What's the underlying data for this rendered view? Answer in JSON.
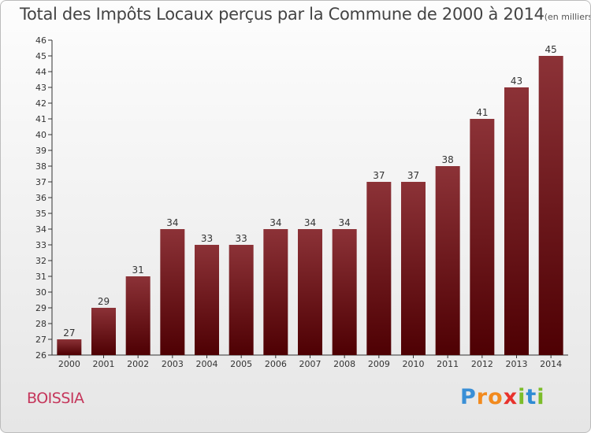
{
  "title": "Total des Impôts Locaux perçus par la Commune de 2000 à 2014",
  "subtitle": "(en milliers d'€)",
  "commune": "BOISSIA",
  "logo": {
    "letters": [
      "P",
      "r",
      "o",
      "x",
      "i",
      "t",
      "i"
    ],
    "colors": [
      "#3a8fd6",
      "#f28a1e",
      "#f28a1e",
      "#e8322c",
      "#7cbd2a",
      "#2f8bd3",
      "#7cbd2a"
    ]
  },
  "colors": {
    "bar_top": "#8c3237",
    "bar_bottom": "#4e0003",
    "axis": "#333333",
    "grid": "#cccccc"
  },
  "chart_data": {
    "type": "bar",
    "title": "Total des Impôts Locaux perçus par la Commune de 2000 à 2014",
    "subtitle": "(en milliers d'€)",
    "xlabel": "",
    "ylabel": "",
    "categories": [
      "2000",
      "2001",
      "2002",
      "2003",
      "2004",
      "2005",
      "2006",
      "2007",
      "2008",
      "2009",
      "2010",
      "2011",
      "2012",
      "2013",
      "2014"
    ],
    "values": [
      27,
      29,
      31,
      34,
      33,
      33,
      34,
      34,
      34,
      37,
      37,
      38,
      41,
      43,
      45
    ],
    "ylim": [
      26,
      46
    ],
    "yticks": [
      26,
      27,
      28,
      29,
      30,
      31,
      32,
      33,
      34,
      35,
      36,
      37,
      38,
      39,
      40,
      41,
      42,
      43,
      44,
      45,
      46
    ],
    "grid": false
  }
}
